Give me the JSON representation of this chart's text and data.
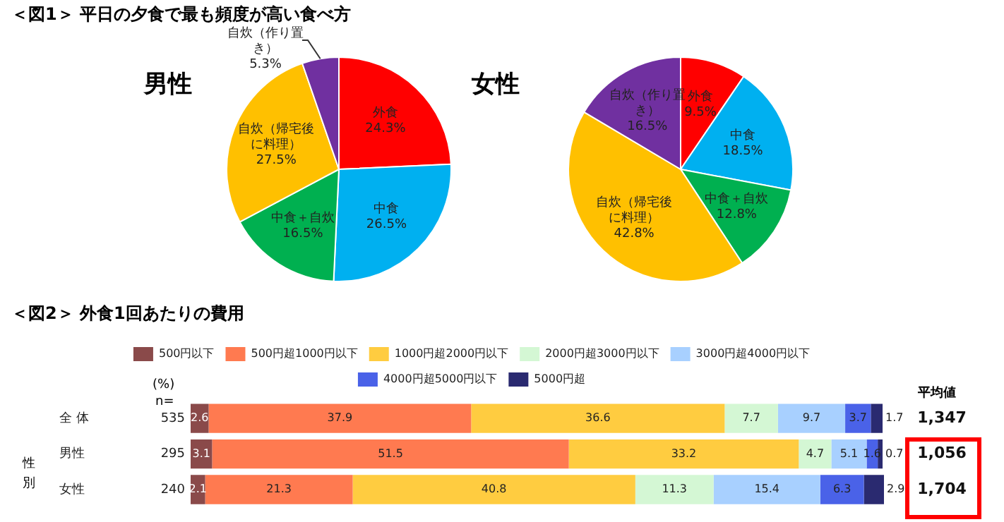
{
  "chart_data": [
    {
      "type": "pie",
      "title": "＜図1＞ 平日の夕食で最も頻度が高い食べ方",
      "subtitle": "男性",
      "categories": [
        "外食",
        "中食",
        "中食＋自炊",
        "自炊（帰宅後に料理）",
        "自炊（作り置き）"
      ],
      "values": [
        24.3,
        26.5,
        16.5,
        27.5,
        5.3
      ],
      "value_labels": [
        "24.3%",
        "26.5%",
        "16.5%",
        "27.5%",
        "5.3%"
      ],
      "colors": [
        "#ff0000",
        "#00b0f0",
        "#00b050",
        "#ffc000",
        "#7030a0"
      ],
      "legend": false
    },
    {
      "type": "pie",
      "subtitle": "女性",
      "categories": [
        "外食",
        "中食",
        "中食＋自炊",
        "自炊（帰宅後に料理）",
        "自炊（作り置き）"
      ],
      "values": [
        9.5,
        18.5,
        12.8,
        42.8,
        16.5
      ],
      "value_labels": [
        "9.5%",
        "18.5%",
        "12.8%",
        "42.8%",
        "16.5%"
      ],
      "colors": [
        "#ff0000",
        "#00b0f0",
        "#00b050",
        "#ffc000",
        "#7030a0"
      ],
      "legend": false
    },
    {
      "type": "bar",
      "title": "＜図2＞ 外食1回あたりの費用",
      "orientation": "horizontal",
      "stacked": true,
      "categories": [
        "全 体",
        "男性",
        "女性"
      ],
      "xlim": [
        0,
        100.1
      ],
      "tick_labels": "y",
      "legend": "top",
      "data_labels": true,
      "series": [
        {
          "name": "500円以下",
          "color": "#8a4a4a",
          "values": [
            2.6,
            3.1,
            2.1
          ]
        },
        {
          "name": "500円超1000円以下",
          "color": "#ff7a50",
          "values": [
            37.9,
            51.5,
            21.3
          ]
        },
        {
          "name": "1000円超2000円以下",
          "color": "#ffcc40",
          "values": [
            36.6,
            33.2,
            40.8
          ]
        },
        {
          "name": "2000円超3000円以下",
          "color": "#d4f7d4",
          "values": [
            7.7,
            4.7,
            11.3
          ]
        },
        {
          "name": "3000円超4000円以下",
          "color": "#a8d0ff",
          "values": [
            9.7,
            5.1,
            15.4
          ]
        },
        {
          "name": "4000円超5000円以下",
          "color": "#4a62e8",
          "values": [
            3.7,
            1.6,
            6.3
          ]
        },
        {
          "name": "5000円超",
          "color": "#2a2a70",
          "values": [
            1.7,
            0.7,
            2.9
          ]
        }
      ],
      "annotations": [
        "(%)",
        "n=",
        "性別",
        "平均値",
        "535",
        "295",
        "240",
        "1,347",
        "1,056",
        "1,704"
      ]
    }
  ]
}
